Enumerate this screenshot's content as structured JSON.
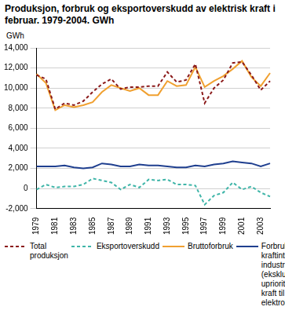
{
  "chart_data": {
    "type": "line",
    "title": "Produksjon, forbruk og eksportoverskudd av elektrisk kraft i februar. 1979-2004. GWh",
    "y_label": "GWh",
    "categories": [
      "1979",
      null,
      "1981",
      null,
      "1983",
      null,
      "1985",
      null,
      "1987",
      null,
      "1989",
      null,
      "1991",
      null,
      "1993",
      null,
      "1995",
      null,
      "1997",
      null,
      "1999",
      null,
      "2001",
      null,
      "2003",
      null
    ],
    "ylim": [
      -2000,
      14000
    ],
    "yticks": [
      -2000,
      0,
      2000,
      4000,
      6000,
      8000,
      10000,
      12000,
      14000
    ],
    "grid": true,
    "legend": "bottom",
    "series": [
      {
        "name": "Total produksjon",
        "color": "#8b1a1a",
        "line_style": "dashed",
        "values": [
          11300,
          10900,
          7900,
          8500,
          8300,
          8700,
          9600,
          10400,
          10900,
          9900,
          10100,
          10100,
          10200,
          10200,
          11600,
          10600,
          10800,
          12400,
          8500,
          10000,
          10800,
          12500,
          12600,
          11300,
          9800,
          10700
        ]
      },
      {
        "name": "Eksportoverskudd",
        "color": "#3fb5a8",
        "line_style": "dashed",
        "values": [
          -100,
          400,
          100,
          200,
          200,
          400,
          1000,
          800,
          600,
          -100,
          400,
          100,
          900,
          800,
          900,
          400,
          400,
          300,
          -1600,
          -700,
          -400,
          600,
          -100,
          200,
          -400,
          -800
        ]
      },
      {
        "name": "Bruttoforbruk",
        "color": "#f0a030",
        "line_style": "solid",
        "values": [
          11400,
          10500,
          7800,
          8300,
          8100,
          8300,
          8600,
          9600,
          10300,
          10000,
          9700,
          10000,
          9300,
          9300,
          10700,
          10200,
          10300,
          12100,
          10100,
          10700,
          11200,
          11900,
          12700,
          11100,
          10200,
          11500
        ]
      },
      {
        "name": "Forbruk i kraftintensiv industri (eksklusive uprioritert kraft til elektrokjeler)",
        "color": "#1f3f8f",
        "line_style": "solid",
        "values": [
          2200,
          2200,
          2200,
          2300,
          2100,
          2000,
          2100,
          2500,
          2400,
          2200,
          2200,
          2400,
          2300,
          2300,
          2200,
          2100,
          2100,
          2300,
          2200,
          2400,
          2500,
          2700,
          2600,
          2500,
          2200,
          2500
        ]
      }
    ]
  }
}
